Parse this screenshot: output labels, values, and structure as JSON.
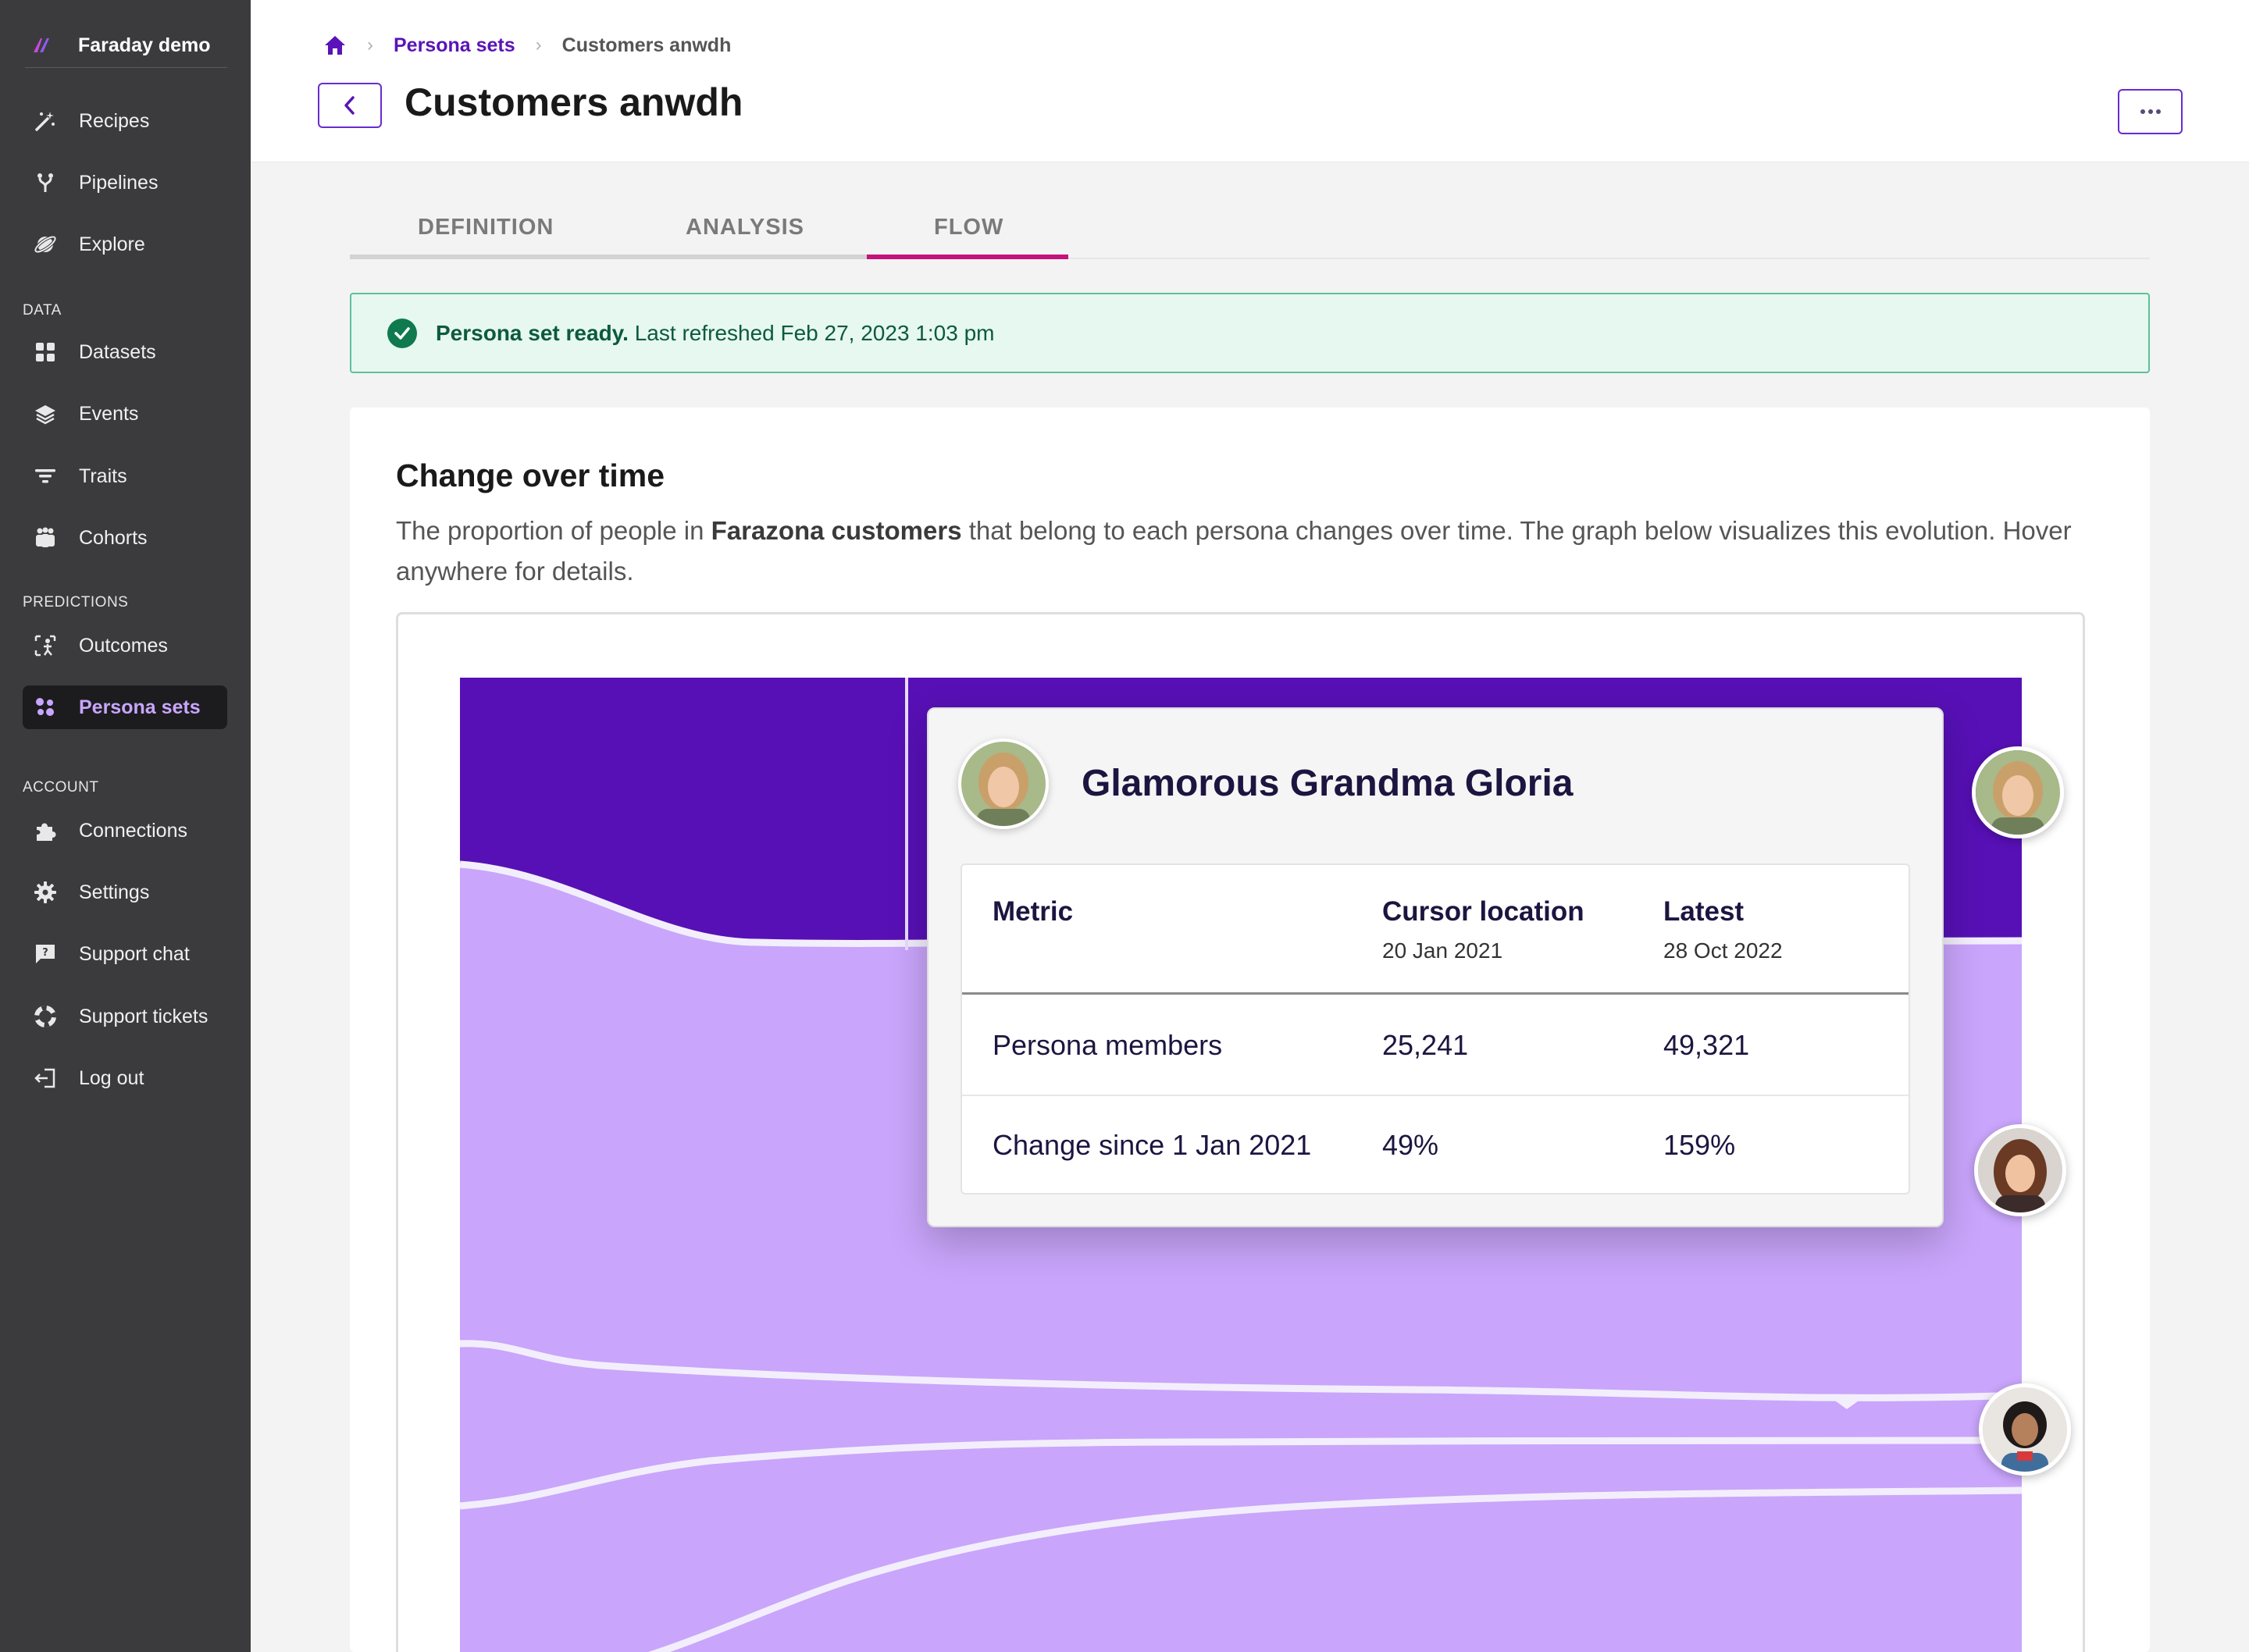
{
  "app": {
    "workspace": "Faraday demo"
  },
  "sidebar": {
    "items_top": [
      {
        "label": "Recipes",
        "icon": "magic-wand-icon"
      },
      {
        "label": "Pipelines",
        "icon": "pipeline-icon"
      },
      {
        "label": "Explore",
        "icon": "planet-icon"
      }
    ],
    "section_data": "DATA",
    "items_data": [
      {
        "label": "Datasets",
        "icon": "grid-icon"
      },
      {
        "label": "Events",
        "icon": "layers-icon"
      },
      {
        "label": "Traits",
        "icon": "filter-icon"
      },
      {
        "label": "Cohorts",
        "icon": "people-icon"
      }
    ],
    "section_predictions": "PREDICTIONS",
    "items_predictions": [
      {
        "label": "Outcomes",
        "icon": "outcomes-icon"
      },
      {
        "label": "Persona sets",
        "icon": "persona-icon",
        "active": true
      }
    ],
    "section_account": "ACCOUNT",
    "items_account": [
      {
        "label": "Connections",
        "icon": "puzzle-icon"
      },
      {
        "label": "Settings",
        "icon": "gear-icon"
      },
      {
        "label": "Support chat",
        "icon": "chat-icon"
      },
      {
        "label": "Support tickets",
        "icon": "lifebuoy-icon"
      },
      {
        "label": "Log out",
        "icon": "logout-icon"
      }
    ]
  },
  "breadcrumb": {
    "parent": "Persona sets",
    "current": "Customers anwdh"
  },
  "page": {
    "title": "Customers anwdh"
  },
  "tabs": [
    {
      "label": "DEFINITION"
    },
    {
      "label": "ANALYSIS"
    },
    {
      "label": "FLOW",
      "active": true
    }
  ],
  "alert": {
    "strong": "Persona set ready.",
    "text": "Last refreshed Feb 27, 2023 1:03 pm"
  },
  "card": {
    "title": "Change over time",
    "desc_before": "The proportion of people in ",
    "desc_bold": "Farazona customers",
    "desc_after": " that belong to each persona changes over time. The graph below visualizes this evolution. Hover anywhere for details."
  },
  "tooltip": {
    "persona": "Glamorous Grandma Gloria",
    "col_metric": "Metric",
    "col_cursor": "Cursor location",
    "col_cursor_date": "20 Jan 2021",
    "col_latest": "Latest",
    "col_latest_date": "28 Oct 2022",
    "rows": [
      {
        "metric": "Persona members",
        "cursor": "25,241",
        "latest": "49,321"
      },
      {
        "metric": "Change since 1 Jan 2021",
        "cursor": "49%",
        "latest": "159%"
      }
    ]
  },
  "colors": {
    "accent": "#6a2bd0",
    "tab_underline": "#c4137d",
    "stream_dark": "#5710b5",
    "stream_light": "#c9a5fb"
  }
}
